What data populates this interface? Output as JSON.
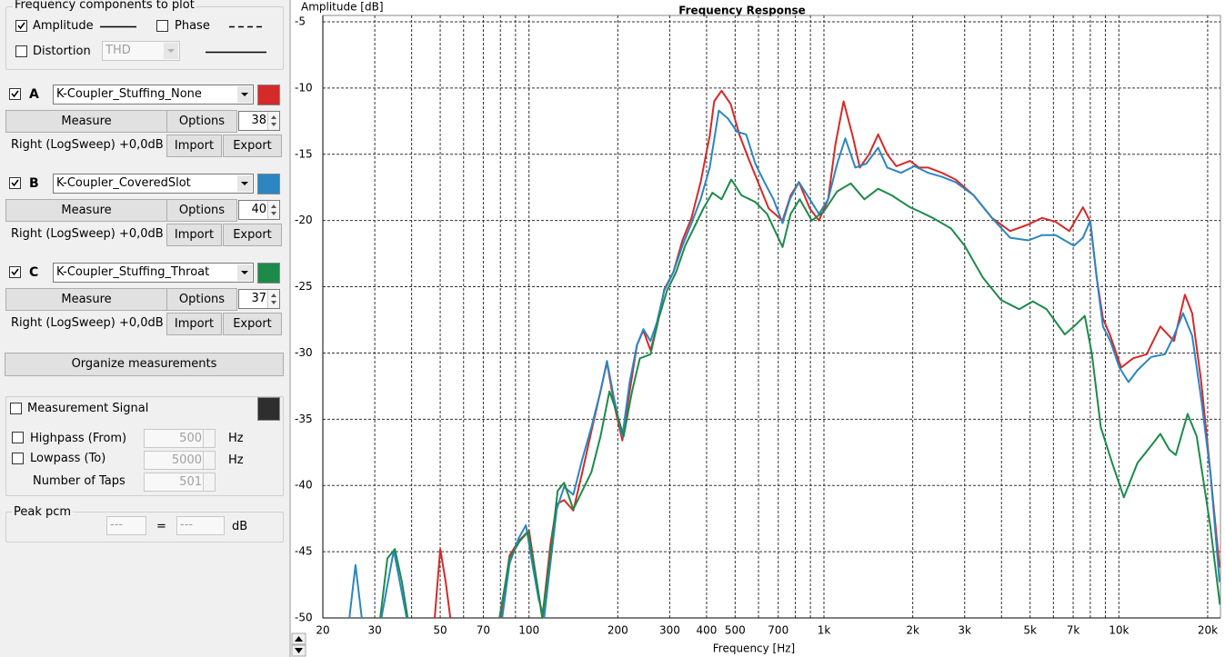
{
  "panel": {
    "freq_group": {
      "title": "Frequency components to plot",
      "amplitude": "Amplitude",
      "phase": "Phase",
      "distortion": "Distortion",
      "distortion_type": "THD"
    },
    "measurements": [
      {
        "letter": "A",
        "measure": "Measure",
        "options": "Options",
        "count": 38,
        "source": "Right (LogSweep) +0,0dB",
        "import": "Import",
        "export": "Export"
      },
      {
        "letter": "B",
        "measure": "Measure",
        "options": "Options",
        "count": 40,
        "source": "Right (LogSweep) +0,0dB",
        "import": "Import",
        "export": "Export"
      },
      {
        "letter": "C",
        "measure": "Measure",
        "options": "Options",
        "count": 37,
        "source": "Right (LogSweep) +0,0dB",
        "import": "Import",
        "export": "Export"
      }
    ],
    "organize": "Organize measurements",
    "signal": {
      "label": "Measurement Signal",
      "highpass": "Highpass (From)",
      "highpass_value": 500,
      "lowpass": "Lowpass (To)",
      "lowpass_value": 5000,
      "taps_label": "Number of Taps",
      "taps_value": 501,
      "unit": "Hz"
    },
    "peak": {
      "title": "Peak pcm",
      "left": "---",
      "eq": "=",
      "right": "---",
      "unit": "dB"
    }
  },
  "chart_data": {
    "type": "line",
    "title": "Frequency Response",
    "y_label": "Amplitude [dB]",
    "x_label": "Frequency [Hz]",
    "x_scale": "log",
    "grid": true,
    "xlim": [
      20,
      22100
    ],
    "ylim": [
      -50,
      -5
    ],
    "xticks": [
      20,
      30,
      50,
      70,
      100,
      200,
      300,
      400,
      500,
      700,
      {
        "value": 1000,
        "label": "1k"
      },
      {
        "value": 2000,
        "label": "2k"
      },
      {
        "value": 3000,
        "label": "3k"
      },
      {
        "value": 5000,
        "label": "5k"
      },
      {
        "value": 7000,
        "label": "7k"
      },
      {
        "value": 10000,
        "label": "10k"
      },
      {
        "value": 20000,
        "label": "20k"
      }
    ],
    "xminorticks": [
      40,
      60,
      80,
      90,
      600,
      800,
      900,
      4000,
      6000,
      8000,
      9000
    ],
    "yticks": [
      -5,
      -10,
      -15,
      -20,
      -25,
      -30,
      -35,
      -40,
      -45,
      -50
    ],
    "series": [
      {
        "name": "K-Coupler_Stuffing_None",
        "color": "#d42a2a",
        "x": [
          47.9,
          50,
          52.2,
          54.1,
          null,
          80,
          85.9,
          92.2,
          100,
          106.3,
          110.9,
          118.2,
          124.2,
          131.5,
          141.3,
          151.6,
          162.8,
          174.8,
          183.8,
          194.5,
          207.2,
          219.4,
          232.3,
          244.1,
          258.2,
          271.4,
          287.4,
          308.6,
          331.3,
          355.7,
          381.9,
          410,
          424.5,
          449.7,
          482.8,
          518.3,
          556.6,
          597.5,
          650,
          724,
          771,
          822.8,
          896,
          962,
          1033,
          1093,
          1166,
          1251,
          1324,
          1422,
          1527,
          1639,
          1760,
          1958,
          2102,
          2257,
          2512,
          2793,
          3220,
          3712,
          4279,
          4932,
          5487,
          6103,
          6790,
          7553,
          8000,
          8406,
          8832,
          9352,
          10180,
          11170,
          12420,
          13820,
          15380,
          16740,
          17720,
          19030,
          20430,
          21940
        ],
        "values": [
          -50,
          -44.8,
          -47.3,
          -50,
          null,
          -50,
          -45.3,
          -44.2,
          -43.4,
          -47.3,
          -50,
          -44.5,
          -41.4,
          -41.1,
          -41.9,
          -39.0,
          -35.9,
          -32.9,
          -30.7,
          -33.9,
          -36.6,
          -32.9,
          -29.4,
          -28.3,
          -29.8,
          -28.0,
          -25.2,
          -23.9,
          -21.5,
          -19.8,
          -17.1,
          -13.6,
          -11.0,
          -10.2,
          -11.2,
          -13.6,
          -15.4,
          -17.1,
          -19.1,
          -20.0,
          -18.1,
          -17.1,
          -19.1,
          -20.0,
          -18.4,
          -14.3,
          -11.0,
          -13.6,
          -16.0,
          -15.0,
          -13.5,
          -15.0,
          -15.9,
          -15.5,
          -16.0,
          -16.0,
          -16.4,
          -16.9,
          -18.1,
          -19.8,
          -20.8,
          -20.3,
          -19.8,
          -20.1,
          -20.8,
          -19.0,
          -20.1,
          -24.3,
          -27.4,
          -28.7,
          -31.1,
          -30.4,
          -30.1,
          -28.0,
          -29.1,
          -25.6,
          -27.0,
          -32.2,
          -39.0,
          -46.2
        ]
      },
      {
        "name": "K-Coupler_CoveredSlot",
        "color": "#2c86c0",
        "x": [
          24.6,
          25.8,
          27.1,
          null,
          31.6,
          34.8,
          38.5,
          null,
          81.1,
          85.9,
          92.2,
          97.6,
          102.6,
          107.8,
          112.5,
          118.2,
          124.2,
          131.5,
          141.3,
          151.6,
          162.8,
          174.8,
          183.8,
          194.5,
          207.2,
          219.4,
          232.3,
          244.1,
          258.2,
          271.4,
          287.4,
          308.6,
          331.3,
          355.7,
          381.9,
          410,
          440.2,
          472.6,
          507.4,
          544.8,
          584.9,
          628,
          674.3,
          724,
          766.5,
          822.8,
          896,
          962,
          1033,
          1109,
          1182,
          1278,
          1393,
          1527,
          1639,
          1824,
          2027,
          2257,
          2512,
          2793,
          3220,
          3712,
          4279,
          4932,
          5487,
          6103,
          7036,
          7553,
          8000,
          8406,
          8832,
          9352,
          10040,
          10780,
          11570,
          12870,
          14320,
          15380,
          16510,
          17720,
          19030,
          20430,
          21940
        ],
        "values": [
          -50,
          -46.0,
          -50,
          null,
          -50,
          -44.9,
          -50,
          null,
          -50,
          -45.9,
          -44.0,
          -43.0,
          -45.9,
          -48.6,
          -50,
          -45.9,
          -41.8,
          -40.1,
          -40.7,
          -38.0,
          -35.6,
          -32.9,
          -30.6,
          -33.5,
          -36.3,
          -32.2,
          -29.4,
          -28.2,
          -29.1,
          -27.7,
          -25.3,
          -23.9,
          -21.9,
          -20.2,
          -18.4,
          -16.0,
          -11.7,
          -12.3,
          -13.3,
          -13.5,
          -15.7,
          -17.1,
          -18.4,
          -20.2,
          -18.4,
          -17.1,
          -18.4,
          -19.5,
          -18.4,
          -15.7,
          -13.8,
          -16.0,
          -15.7,
          -14.5,
          -16.0,
          -16.4,
          -15.9,
          -16.4,
          -16.7,
          -17.1,
          -18.1,
          -19.8,
          -21.3,
          -21.5,
          -21.1,
          -21.1,
          -21.9,
          -21.3,
          -20.0,
          -24.3,
          -28.0,
          -29.1,
          -31.1,
          -32.2,
          -31.3,
          -30.3,
          -30.1,
          -28.7,
          -27.0,
          -28.7,
          -33.5,
          -39.0,
          -47.3
        ]
      },
      {
        "name": "K-Coupler_Stuffing_Throat",
        "color": "#1e8a4a",
        "x": [
          31.3,
          33.1,
          35.1,
          37.1,
          38.8,
          null,
          79.4,
          85.9,
          93.1,
          99.3,
          106.3,
          110.9,
          118.2,
          125.1,
          131.5,
          141.3,
          151.6,
          162.8,
          174.8,
          187.3,
          196.5,
          209.3,
          223.5,
          237.7,
          258.2,
          275.3,
          293.7,
          315.3,
          338.4,
          363.3,
          390.1,
          418.8,
          449.7,
          484.9,
          525.6,
          584.9,
          641.5,
          724,
          771,
          828,
          910,
          1000,
          1109,
          1233,
          1372,
          1527,
          1698,
          1958,
          2102,
          2337,
          2697,
          2999,
          3457,
          3985,
          4594,
          5110,
          5686,
          6553,
          7036,
          7663,
          8105,
          8681,
          9486,
          10400,
          11570,
          12870,
          13820,
          14830,
          15600,
          17100,
          18360,
          20430,
          22000
        ],
        "values": [
          -50,
          -45.5,
          -44.8,
          -47.3,
          -50,
          null,
          -50,
          -45.5,
          -44.2,
          -43.5,
          -47.3,
          -50,
          -45.2,
          -40.4,
          -39.8,
          -41.8,
          -40.4,
          -39.0,
          -36.3,
          -32.9,
          -34.2,
          -36.3,
          -32.9,
          -30.4,
          -30.1,
          -27.4,
          -25.3,
          -23.9,
          -21.9,
          -20.5,
          -19.1,
          -17.9,
          -18.4,
          -16.9,
          -18.1,
          -18.6,
          -19.5,
          -22.0,
          -19.5,
          -18.4,
          -20.0,
          -19.3,
          -17.8,
          -17.2,
          -18.4,
          -17.6,
          -18.1,
          -19.0,
          -19.3,
          -19.8,
          -20.6,
          -21.9,
          -24.3,
          -26.0,
          -26.7,
          -26.1,
          -26.7,
          -28.6,
          -28.0,
          -27.2,
          -30.1,
          -35.6,
          -38.3,
          -40.9,
          -38.3,
          -37.0,
          -36.1,
          -37.3,
          -37.7,
          -34.6,
          -36.3,
          -43.1,
          -49.0
        ]
      }
    ]
  }
}
